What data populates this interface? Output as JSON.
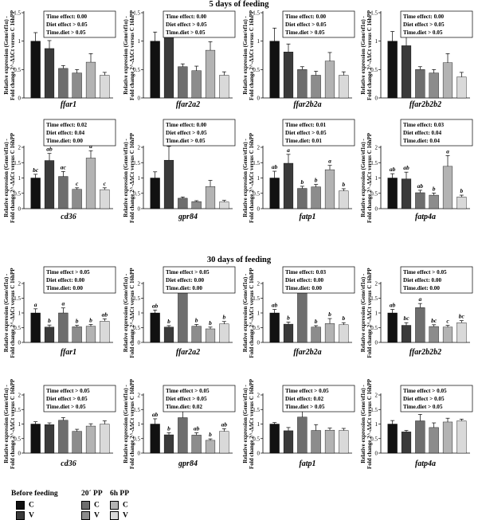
{
  "section_titles": [
    "5 days of feeding",
    "30 days of feeding"
  ],
  "legend": {
    "groups": [
      {
        "title": "Before feeding",
        "items": [
          {
            "label": "C",
            "color": "#111111"
          },
          {
            "label": "V",
            "color": "#3a3a3a"
          }
        ]
      },
      {
        "title": "20´ PP",
        "items": [
          {
            "label": "C",
            "color": "#6e6e6e"
          },
          {
            "label": "V",
            "color": "#8c8c8c"
          }
        ]
      },
      {
        "title": "6h PP",
        "items": [
          {
            "label": "C",
            "color": "#b3b3b3"
          },
          {
            "label": "V",
            "color": "#d9d9d9"
          }
        ]
      }
    ]
  },
  "ylabel_line1": "Relative expression (Gene/ef1α) -",
  "ylabel_line2": "Fold change 2^-ΔΔCt versus C 16hPP",
  "chart_data": [
    {
      "type": "bar",
      "section": "5 days of feeding",
      "xlabel": "ffar1",
      "ylim": [
        0,
        1.5
      ],
      "ticks": [
        0,
        0.5,
        1,
        1.5
      ],
      "stats": [
        "Time effect: 0.00",
        "Diet effect > 0.05",
        "Time.diet > 0.05"
      ],
      "values": [
        1.0,
        0.87,
        0.52,
        0.44,
        0.63,
        0.4
      ],
      "errors": [
        0.15,
        0.14,
        0.05,
        0.06,
        0.15,
        0.05
      ],
      "letters": [
        "",
        "",
        "",
        "",
        "",
        ""
      ]
    },
    {
      "type": "bar",
      "section": "5 days of feeding",
      "xlabel": "ffar2a2",
      "ylim": [
        0,
        1.5
      ],
      "ticks": [
        0,
        0.5,
        1,
        1.5
      ],
      "stats": [
        "Time effect: 0.00",
        "Diet effect > 0.05",
        "Time.diet > 0.05"
      ],
      "values": [
        1.0,
        1.09,
        0.55,
        0.48,
        0.84,
        0.4
      ],
      "errors": [
        0.16,
        0.12,
        0.05,
        0.08,
        0.15,
        0.06
      ],
      "letters": [
        "",
        "",
        "",
        "",
        "",
        ""
      ]
    },
    {
      "type": "bar",
      "section": "5 days of feeding",
      "xlabel": "ffar2b2a",
      "ylim": [
        0,
        1.5
      ],
      "ticks": [
        0,
        0.5,
        1,
        1.5
      ],
      "stats": [
        "Time effect: 0.00",
        "Diet effect > 0.05",
        "Time.diet > 0.05"
      ],
      "values": [
        1.0,
        0.81,
        0.5,
        0.4,
        0.65,
        0.4
      ],
      "errors": [
        0.23,
        0.14,
        0.05,
        0.07,
        0.15,
        0.06
      ],
      "letters": [
        "",
        "",
        "",
        "",
        "",
        ""
      ]
    },
    {
      "type": "bar",
      "section": "5 days of feeding",
      "xlabel": "ffar2b2b2",
      "ylim": [
        0,
        1.5
      ],
      "ticks": [
        0,
        0.5,
        1,
        1.5
      ],
      "stats": [
        "Time effect: 0.00",
        "Diet effect > 0.05",
        "Time.diet > 0.05"
      ],
      "values": [
        1.0,
        0.92,
        0.5,
        0.44,
        0.62,
        0.37
      ],
      "errors": [
        0.17,
        0.2,
        0.05,
        0.06,
        0.16,
        0.08
      ],
      "letters": [
        "",
        "",
        "",
        "",
        "",
        ""
      ]
    },
    {
      "type": "bar",
      "section": "5 days of feeding",
      "xlabel": "cd36",
      "ylim": [
        0,
        2
      ],
      "ticks": [
        0,
        0.5,
        1,
        1.5,
        2
      ],
      "stats": [
        "Time effect: 0.02",
        "Diet effect: 0.04",
        "Time.diet: 0.00"
      ],
      "values": [
        1.0,
        1.57,
        1.05,
        0.63,
        1.65,
        0.62
      ],
      "errors": [
        0.12,
        0.23,
        0.16,
        0.05,
        0.24,
        0.06
      ],
      "letters": [
        "bc",
        "ab",
        "ac",
        "c",
        "a",
        "c"
      ]
    },
    {
      "type": "bar",
      "section": "5 days of feeding",
      "xlabel": "gpr84",
      "ylim": [
        0,
        2
      ],
      "ticks": [
        0,
        0.5,
        1,
        1.5,
        2
      ],
      "stats": [
        "Time effect: 0.00",
        "Diet effect > 0.05",
        "Time.diet > 0.05"
      ],
      "values": [
        1.0,
        1.58,
        0.34,
        0.23,
        0.72,
        0.22
      ],
      "errors": [
        0.2,
        0.45,
        0.04,
        0.03,
        0.2,
        0.05
      ],
      "letters": [
        "",
        "",
        "",
        "",
        "",
        ""
      ]
    },
    {
      "type": "bar",
      "section": "5 days of feeding",
      "xlabel": "fatp1",
      "ylim": [
        0,
        2
      ],
      "ticks": [
        0,
        0.5,
        1,
        1.5,
        2
      ],
      "stats": [
        "Time effect: 0.01",
        "Diet effect > 0.05",
        "Time.diet: 0.01"
      ],
      "values": [
        1.0,
        1.48,
        0.66,
        0.71,
        1.27,
        0.58
      ],
      "errors": [
        0.22,
        0.29,
        0.07,
        0.08,
        0.14,
        0.07
      ],
      "letters": [
        "ab",
        "a",
        "b",
        "b",
        "a",
        "b"
      ]
    },
    {
      "type": "bar",
      "section": "5 days of feeding",
      "xlabel": "fatp4a",
      "ylim": [
        0,
        2
      ],
      "ticks": [
        0,
        0.5,
        1,
        1.5,
        2
      ],
      "stats": [
        "Time effect: 0.03",
        "Diet effect: 0.04",
        "Time.diet: 0.04"
      ],
      "values": [
        1.0,
        0.97,
        0.52,
        0.44,
        1.38,
        0.38
      ],
      "errors": [
        0.14,
        0.22,
        0.08,
        0.07,
        0.35,
        0.06
      ],
      "letters": [
        "ab",
        "ab",
        "ab",
        "b",
        "a",
        "b"
      ]
    },
    {
      "type": "bar",
      "section": "30 days of feeding",
      "xlabel": "ffar1",
      "ylim": [
        0,
        2
      ],
      "ticks": [
        0,
        0.5,
        1,
        1.5,
        2
      ],
      "stats": [
        "Time effect > 0.05",
        "Diet effect: 0.00",
        "Time.diet: 0.00"
      ],
      "values": [
        1.0,
        0.52,
        1.0,
        0.53,
        0.55,
        0.72
      ],
      "errors": [
        0.14,
        0.07,
        0.17,
        0.05,
        0.06,
        0.08
      ],
      "letters": [
        "a",
        "b",
        "a",
        "b",
        "b",
        "ab"
      ]
    },
    {
      "type": "bar",
      "section": "30 days of feeding",
      "xlabel": "ffar2a2",
      "ylim": [
        0,
        2
      ],
      "ticks": [
        0,
        0.5,
        1,
        1.5,
        2
      ],
      "stats": [
        "Time effect > 0.05",
        "Diet effect: 0.00",
        "Time.diet: 0.00"
      ],
      "values": [
        1.0,
        0.52,
        1.72,
        0.55,
        0.46,
        0.63
      ],
      "errors": [
        0.1,
        0.05,
        0.33,
        0.06,
        0.06,
        0.08
      ],
      "letters": [
        "ab",
        "b",
        "a",
        "b",
        "b",
        "b"
      ]
    },
    {
      "type": "bar",
      "section": "30 days of feeding",
      "xlabel": "ffar2b2a",
      "ylim": [
        0,
        2
      ],
      "ticks": [
        0,
        0.5,
        1,
        1.5,
        2
      ],
      "stats": [
        "Time effect: 0.03",
        "Diet effect: 0.00",
        "Time.diet: 0.00"
      ],
      "values": [
        1.0,
        0.62,
        1.82,
        0.52,
        0.64,
        0.6
      ],
      "errors": [
        0.12,
        0.07,
        0.38,
        0.05,
        0.17,
        0.07
      ],
      "letters": [
        "ab",
        "b",
        "a",
        "b",
        "b",
        "b"
      ]
    },
    {
      "type": "bar",
      "section": "30 days of feeding",
      "xlabel": "ffar2b2b2",
      "ylim": [
        0,
        2
      ],
      "ticks": [
        0,
        0.5,
        1,
        1.5,
        2
      ],
      "stats": [
        "Time effect > 0.05",
        "Diet effect: 0.00",
        "Time.diet: 0.00"
      ],
      "values": [
        1.0,
        0.58,
        1.18,
        0.54,
        0.52,
        0.67
      ],
      "errors": [
        0.12,
        0.09,
        0.14,
        0.06,
        0.06,
        0.07
      ],
      "letters": [
        "ab",
        "bc",
        "a",
        "bc",
        "c",
        "bc"
      ]
    },
    {
      "type": "bar",
      "section": "30 days of feeding",
      "xlabel": "cd36",
      "ylim": [
        0,
        2
      ],
      "ticks": [
        0,
        0.5,
        1,
        1.5,
        2
      ],
      "stats": [
        "Time effect > 0.05",
        "Diet effect > 0.05",
        "Time.diet > 0.05"
      ],
      "values": [
        1.0,
        0.98,
        1.13,
        0.75,
        0.93,
        1.0
      ],
      "errors": [
        0.08,
        0.06,
        0.09,
        0.07,
        0.08,
        0.11
      ],
      "letters": [
        "",
        "",
        "",
        "",
        "",
        ""
      ]
    },
    {
      "type": "bar",
      "section": "30 days of feeding",
      "xlabel": "gpr84",
      "ylim": [
        0,
        2
      ],
      "ticks": [
        0,
        0.5,
        1,
        1.5,
        2
      ],
      "stats": [
        "Time effect > 0.05",
        "Diet effect > 0.05",
        "Time.diet: 0.02"
      ],
      "values": [
        1.0,
        0.63,
        1.22,
        0.62,
        0.44,
        0.75
      ],
      "errors": [
        0.18,
        0.07,
        0.25,
        0.08,
        0.05,
        0.09
      ],
      "letters": [
        "ab",
        "b",
        "a",
        "ab",
        "b",
        "ab"
      ]
    },
    {
      "type": "bar",
      "section": "30 days of feeding",
      "xlabel": "fatp1",
      "ylim": [
        0,
        2
      ],
      "ticks": [
        0,
        0.5,
        1,
        1.5,
        2
      ],
      "stats": [
        "Time effect > 0.05",
        "Diet effect: 0.02",
        "Time.diet > 0.05"
      ],
      "values": [
        1.0,
        0.77,
        1.24,
        0.78,
        0.79,
        0.78
      ],
      "errors": [
        0.05,
        0.11,
        0.22,
        0.2,
        0.07,
        0.07
      ],
      "letters": [
        "",
        "",
        "",
        "",
        "",
        ""
      ]
    },
    {
      "type": "bar",
      "section": "30 days of feeding",
      "xlabel": "fatp4a",
      "ylim": [
        0,
        2
      ],
      "ticks": [
        0,
        0.5,
        1,
        1.5,
        2
      ],
      "stats": [
        "Time effect > 0.05",
        "Diet effect > 0.05",
        "Time.diet > 0.05"
      ],
      "values": [
        1.0,
        0.73,
        1.11,
        0.88,
        1.07,
        1.11
      ],
      "errors": [
        0.12,
        0.05,
        0.22,
        0.16,
        0.13,
        0.06
      ],
      "letters": [
        "",
        "",
        "",
        "",
        "",
        ""
      ]
    }
  ]
}
